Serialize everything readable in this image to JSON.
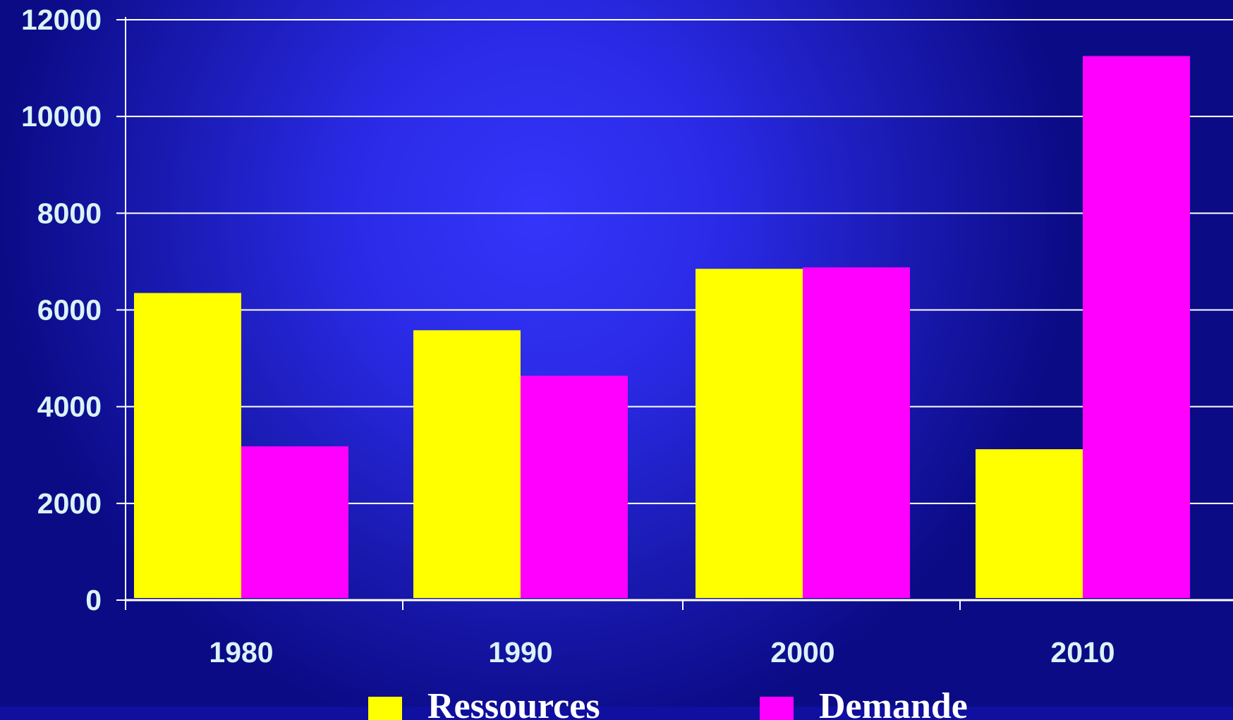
{
  "chart_data": {
    "type": "bar",
    "categories": [
      "1980",
      "1990",
      "2000",
      "2010"
    ],
    "series": [
      {
        "name": "Ressources",
        "color": "#ffff00",
        "values": [
          6350,
          5580,
          6850,
          3120
        ]
      },
      {
        "name": "Demande",
        "color": "#ff00ff",
        "values": [
          3180,
          4640,
          6880,
          11250
        ]
      }
    ],
    "y_ticks": [
      "0",
      "2000",
      "4000",
      "6000",
      "8000",
      "10000",
      "12000"
    ],
    "ylim": [
      0,
      12000
    ],
    "grid": true,
    "legend_position": "bottom"
  }
}
